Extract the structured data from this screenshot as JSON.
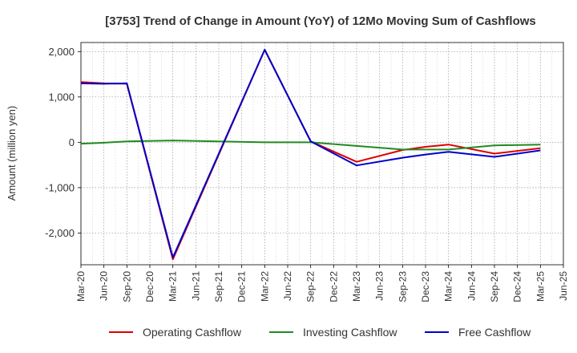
{
  "chart_data": {
    "type": "line",
    "title": "[3753]  Trend of Change in Amount (YoY) of 12Mo Moving Sum of Cashflows",
    "xlabel": "",
    "ylabel": "Amount (million yen)",
    "ylim": [
      -2700,
      2200
    ],
    "yticks": [
      2000,
      1000,
      0,
      -1000,
      -2000
    ],
    "ytick_labels": [
      "2,000",
      "1,000",
      "0",
      "-1,000",
      "-2,000"
    ],
    "categories": [
      "Mar-20",
      "Jun-20",
      "Sep-20",
      "Dec-20",
      "Mar-21",
      "Jun-21",
      "Sep-21",
      "Dec-21",
      "Mar-22",
      "Jun-22",
      "Sep-22",
      "Dec-22",
      "Mar-23",
      "Jun-23",
      "Sep-23",
      "Dec-23",
      "Mar-24",
      "Jun-24",
      "Sep-24",
      "Dec-24",
      "Mar-25",
      "Jun-25"
    ],
    "grid": true,
    "legend_position": "bottom",
    "series": [
      {
        "name": "Operating Cashflow",
        "color": "#dd0000",
        "values": [
          1330,
          1300,
          1290,
          null,
          -2580,
          null,
          null,
          null,
          2040,
          null,
          20,
          null,
          -430,
          null,
          -170,
          -100,
          -50,
          null,
          -250,
          null,
          -130,
          null
        ]
      },
      {
        "name": "Investing Cashflow",
        "color": "#228b22",
        "values": [
          -30,
          -10,
          20,
          null,
          40,
          null,
          null,
          null,
          0,
          null,
          0,
          null,
          -80,
          null,
          -160,
          -160,
          -160,
          null,
          -70,
          null,
          -50,
          null
        ]
      },
      {
        "name": "Free Cashflow",
        "color": "#0000cc",
        "values": [
          1300,
          1290,
          1300,
          null,
          -2540,
          null,
          null,
          null,
          2040,
          null,
          20,
          null,
          -510,
          null,
          -340,
          -270,
          -210,
          null,
          -320,
          null,
          -180,
          null
        ]
      }
    ]
  }
}
